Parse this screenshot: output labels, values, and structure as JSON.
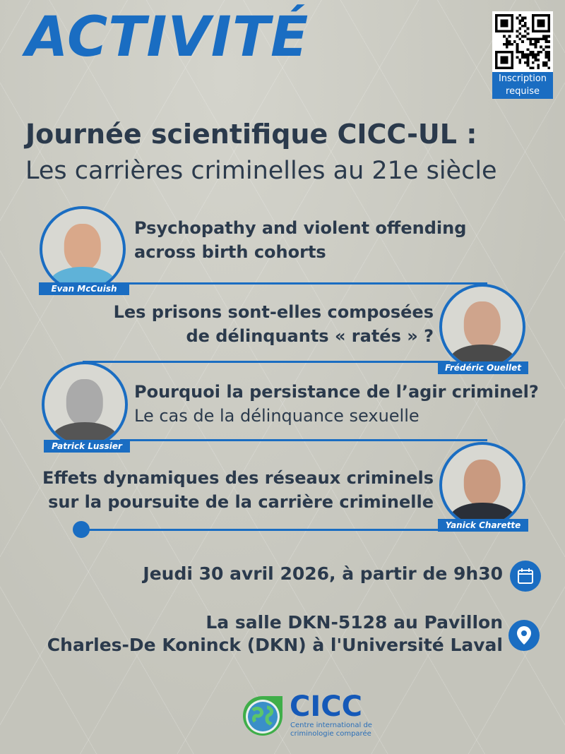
{
  "header": {
    "activity": "ACTIVITÉ",
    "qr_label_line1": "Inscription",
    "qr_label_line2": "requise"
  },
  "title": {
    "line1": "Journée scientifique CICC-UL :",
    "line2": "Les carrières criminelles au 21e siècle"
  },
  "talks": [
    {
      "speaker": "Evan McCuish",
      "line1": "Psychopathy and violent offending",
      "line2": "across birth cohorts"
    },
    {
      "speaker": "Frédéric Ouellet",
      "line1": "Les prisons sont-elles composées",
      "line2": "de délinquants « ratés » ?"
    },
    {
      "speaker": "Patrick Lussier",
      "line1": "Pourquoi la persistance de l’agir criminel?",
      "line2": "Le cas de la délinquance sexuelle"
    },
    {
      "speaker": "Yanick Charette",
      "line1": "Effets dynamiques des réseaux criminels",
      "line2": "sur la poursuite de la carrière criminelle"
    }
  ],
  "event": {
    "date": "Jeudi 30 avril 2026, à partir de 9h30",
    "location_line1": "La salle DKN-5128 au Pavillon",
    "location_line2": "Charles-De Koninck (DKN) à  l'Université Laval",
    "date_icon": "calendar-icon",
    "location_icon": "map-pin-icon"
  },
  "logo": {
    "name": "CICC",
    "tagline1": "Centre international de",
    "tagline2": "criminologie comparée"
  },
  "colors": {
    "accent": "#1a6dc2",
    "text": "#2b3a4c",
    "background": "#c9c9c1"
  }
}
